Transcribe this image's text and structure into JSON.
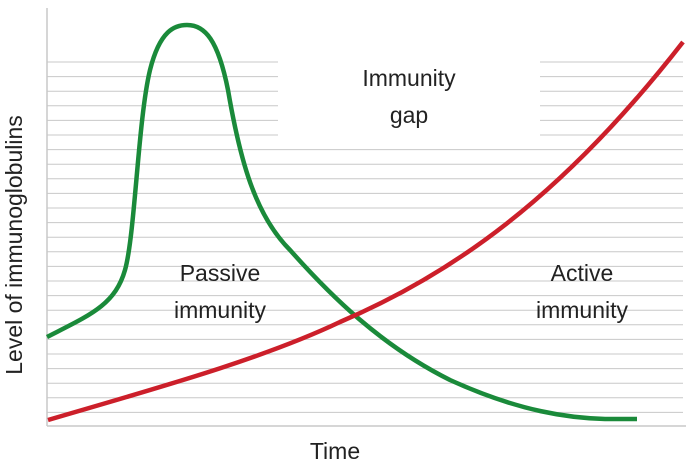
{
  "axes": {
    "x_label": "Time",
    "y_label": "Level of immunoglobulins"
  },
  "regions": [
    {
      "label_lines": [
        "Immunity",
        "gap"
      ]
    },
    {
      "label_lines": [
        "Passive",
        "immunity"
      ]
    },
    {
      "label_lines": [
        "Active",
        "immunity"
      ]
    }
  ]
}
